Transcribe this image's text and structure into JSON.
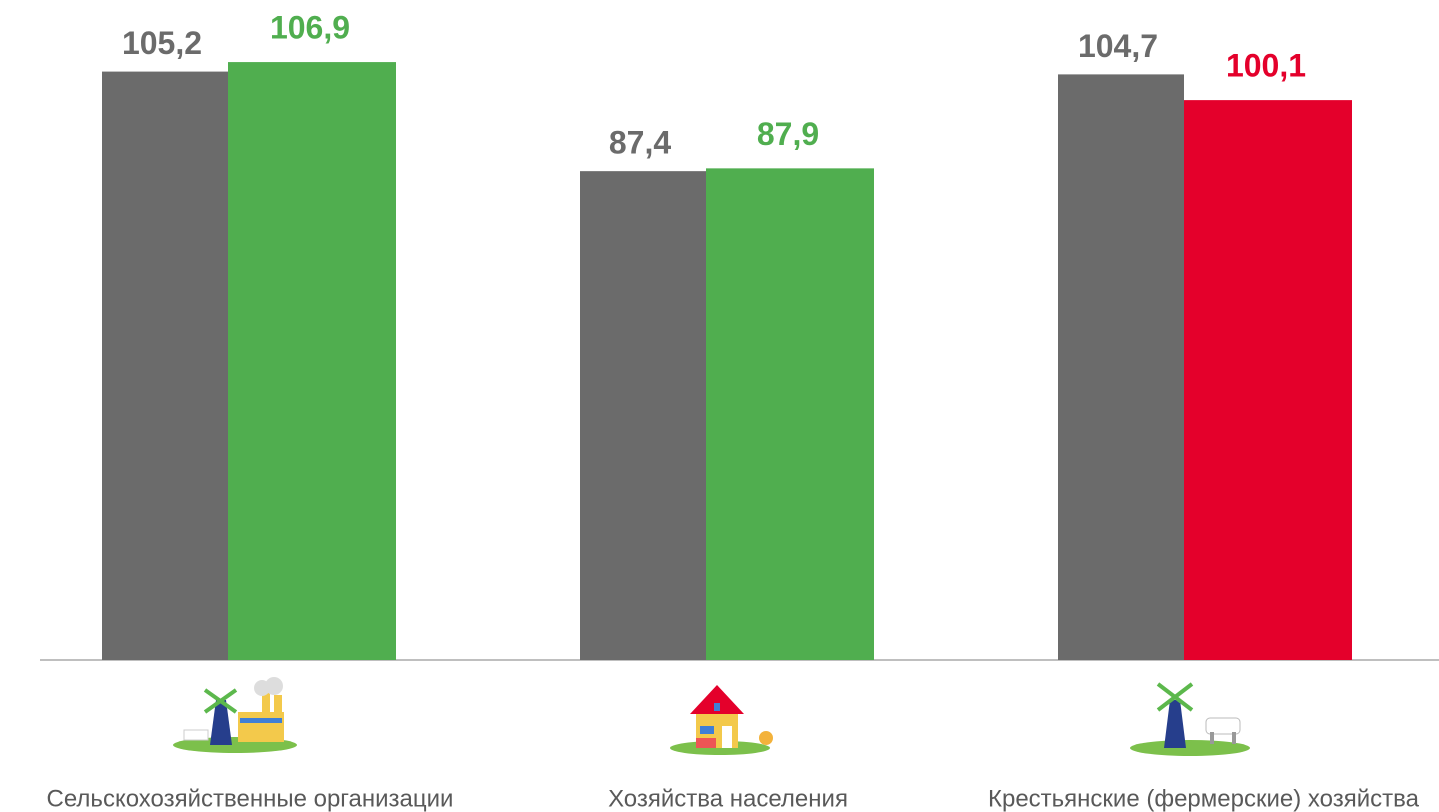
{
  "chart_data": {
    "type": "bar",
    "categories": [
      "Сельскохозяйственные организации",
      "Хозяйства населения",
      "Крестьянские (фермерские) хозяйства"
    ],
    "series": [
      {
        "color": "#6b6b6b",
        "values": [
          105.2,
          87.4,
          104.7
        ],
        "value_labels": [
          "105,2",
          "87,4",
          "104,7"
        ]
      },
      {
        "colors": [
          "#50ae4f",
          "#50ae4f",
          "#e4002b"
        ],
        "values": [
          106.9,
          87.9,
          100.1
        ],
        "value_labels": [
          "106,9",
          "87,9",
          "100,1"
        ]
      }
    ],
    "ylim": [
      0,
      118
    ]
  }
}
